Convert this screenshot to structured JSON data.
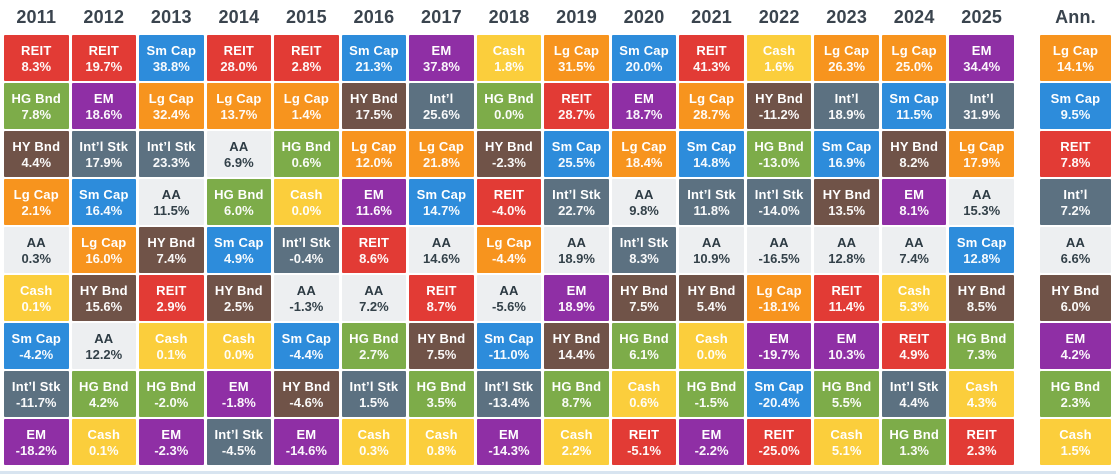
{
  "page": {
    "background": "#ffffff",
    "header_text_color": "#3a444e",
    "bottom_rule_color": "#d8e4f0"
  },
  "chart_data": {
    "type": "table",
    "layout": "ranked-columns-periodic-table",
    "column_headers": [
      "2011",
      "2012",
      "2013",
      "2014",
      "2015",
      "2016",
      "2017",
      "2018",
      "2019",
      "2020",
      "2021",
      "2022",
      "2023",
      "2024",
      "2025",
      "Ann."
    ],
    "assets": {
      "lgcap": {
        "bg": "#f7941e",
        "fg": "#ffffff"
      },
      "smcap": {
        "bg": "#2d8cdb",
        "fg": "#ffffff"
      },
      "intl": {
        "bg": "#5c7181",
        "fg": "#ffffff"
      },
      "em": {
        "bg": "#8f2fa5",
        "fg": "#ffffff"
      },
      "reit": {
        "bg": "#e23b35",
        "fg": "#ffffff"
      },
      "hgbnd": {
        "bg": "#7dac49",
        "fg": "#ffffff"
      },
      "hybnd": {
        "bg": "#705348",
        "fg": "#ffffff"
      },
      "cash": {
        "bg": "#fbce3c",
        "fg": "#ffffff"
      },
      "aa": {
        "bg": "#edeff1",
        "fg": "#2c3a43"
      }
    },
    "columns": [
      {
        "year": "2011",
        "cells": [
          {
            "label": "REIT",
            "value": "8.3%",
            "asset": "reit"
          },
          {
            "label": "HG Bnd",
            "value": "7.8%",
            "asset": "hgbnd"
          },
          {
            "label": "HY Bnd",
            "value": "4.4%",
            "asset": "hybnd"
          },
          {
            "label": "Lg Cap",
            "value": "2.1%",
            "asset": "lgcap"
          },
          {
            "label": "AA",
            "value": "0.3%",
            "asset": "aa"
          },
          {
            "label": "Cash",
            "value": "0.1%",
            "asset": "cash"
          },
          {
            "label": "Sm Cap",
            "value": "-4.2%",
            "asset": "smcap"
          },
          {
            "label": "Int’l Stk",
            "value": "-11.7%",
            "asset": "intl"
          },
          {
            "label": "EM",
            "value": "-18.2%",
            "asset": "em"
          }
        ]
      },
      {
        "year": "2012",
        "cells": [
          {
            "label": "REIT",
            "value": "19.7%",
            "asset": "reit"
          },
          {
            "label": "EM",
            "value": "18.6%",
            "asset": "em"
          },
          {
            "label": "Int’l Stk",
            "value": "17.9%",
            "asset": "intl"
          },
          {
            "label": "Sm Cap",
            "value": "16.4%",
            "asset": "smcap"
          },
          {
            "label": "Lg Cap",
            "value": "16.0%",
            "asset": "lgcap"
          },
          {
            "label": "HY Bnd",
            "value": "15.6%",
            "asset": "hybnd"
          },
          {
            "label": "AA",
            "value": "12.2%",
            "asset": "aa"
          },
          {
            "label": "HG Bnd",
            "value": "4.2%",
            "asset": "hgbnd"
          },
          {
            "label": "Cash",
            "value": "0.1%",
            "asset": "cash"
          }
        ]
      },
      {
        "year": "2013",
        "cells": [
          {
            "label": "Sm Cap",
            "value": "38.8%",
            "asset": "smcap"
          },
          {
            "label": "Lg Cap",
            "value": "32.4%",
            "asset": "lgcap"
          },
          {
            "label": "Int’l Stk",
            "value": "23.3%",
            "asset": "intl"
          },
          {
            "label": "AA",
            "value": "11.5%",
            "asset": "aa"
          },
          {
            "label": "HY Bnd",
            "value": "7.4%",
            "asset": "hybnd"
          },
          {
            "label": "REIT",
            "value": "2.9%",
            "asset": "reit"
          },
          {
            "label": "Cash",
            "value": "0.1%",
            "asset": "cash"
          },
          {
            "label": "HG Bnd",
            "value": "-2.0%",
            "asset": "hgbnd"
          },
          {
            "label": "EM",
            "value": "-2.3%",
            "asset": "em"
          }
        ]
      },
      {
        "year": "2014",
        "cells": [
          {
            "label": "REIT",
            "value": "28.0%",
            "asset": "reit"
          },
          {
            "label": "Lg Cap",
            "value": "13.7%",
            "asset": "lgcap"
          },
          {
            "label": "AA",
            "value": "6.9%",
            "asset": "aa"
          },
          {
            "label": "HG Bnd",
            "value": "6.0%",
            "asset": "hgbnd"
          },
          {
            "label": "Sm Cap",
            "value": "4.9%",
            "asset": "smcap"
          },
          {
            "label": "HY Bnd",
            "value": "2.5%",
            "asset": "hybnd"
          },
          {
            "label": "Cash",
            "value": "0.0%",
            "asset": "cash"
          },
          {
            "label": "EM",
            "value": "-1.8%",
            "asset": "em"
          },
          {
            "label": "Int’l Stk",
            "value": "-4.5%",
            "asset": "intl"
          }
        ]
      },
      {
        "year": "2015",
        "cells": [
          {
            "label": "REIT",
            "value": "2.8%",
            "asset": "reit"
          },
          {
            "label": "Lg Cap",
            "value": "1.4%",
            "asset": "lgcap"
          },
          {
            "label": "HG Bnd",
            "value": "0.6%",
            "asset": "hgbnd"
          },
          {
            "label": "Cash",
            "value": "0.0%",
            "asset": "cash"
          },
          {
            "label": "Int’l Stk",
            "value": "-0.4%",
            "asset": "intl"
          },
          {
            "label": "AA",
            "value": "-1.3%",
            "asset": "aa"
          },
          {
            "label": "Sm Cap",
            "value": "-4.4%",
            "asset": "smcap"
          },
          {
            "label": "HY Bnd",
            "value": "-4.6%",
            "asset": "hybnd"
          },
          {
            "label": "EM",
            "value": "-14.6%",
            "asset": "em"
          }
        ]
      },
      {
        "year": "2016",
        "cells": [
          {
            "label": "Sm Cap",
            "value": "21.3%",
            "asset": "smcap"
          },
          {
            "label": "HY Bnd",
            "value": "17.5%",
            "asset": "hybnd"
          },
          {
            "label": "Lg Cap",
            "value": "12.0%",
            "asset": "lgcap"
          },
          {
            "label": "EM",
            "value": "11.6%",
            "asset": "em"
          },
          {
            "label": "REIT",
            "value": "8.6%",
            "asset": "reit"
          },
          {
            "label": "AA",
            "value": "7.2%",
            "asset": "aa"
          },
          {
            "label": "HG Bnd",
            "value": "2.7%",
            "asset": "hgbnd"
          },
          {
            "label": "Int’l Stk",
            "value": "1.5%",
            "asset": "intl"
          },
          {
            "label": "Cash",
            "value": "0.3%",
            "asset": "cash"
          }
        ]
      },
      {
        "year": "2017",
        "cells": [
          {
            "label": "EM",
            "value": "37.8%",
            "asset": "em"
          },
          {
            "label": "Int’l",
            "value": "25.6%",
            "asset": "intl"
          },
          {
            "label": "Lg Cap",
            "value": "21.8%",
            "asset": "lgcap"
          },
          {
            "label": "Sm Cap",
            "value": "14.7%",
            "asset": "smcap"
          },
          {
            "label": "AA",
            "value": "14.6%",
            "asset": "aa"
          },
          {
            "label": "REIT",
            "value": "8.7%",
            "asset": "reit"
          },
          {
            "label": "HY Bnd",
            "value": "7.5%",
            "asset": "hybnd"
          },
          {
            "label": "HG Bnd",
            "value": "3.5%",
            "asset": "hgbnd"
          },
          {
            "label": "Cash",
            "value": "0.8%",
            "asset": "cash"
          }
        ]
      },
      {
        "year": "2018",
        "cells": [
          {
            "label": "Cash",
            "value": "1.8%",
            "asset": "cash"
          },
          {
            "label": "HG Bnd",
            "value": "0.0%",
            "asset": "hgbnd"
          },
          {
            "label": "HY Bnd",
            "value": "-2.3%",
            "asset": "hybnd"
          },
          {
            "label": "REIT",
            "value": "-4.0%",
            "asset": "reit"
          },
          {
            "label": "Lg Cap",
            "value": "-4.4%",
            "asset": "lgcap"
          },
          {
            "label": "AA",
            "value": "-5.6%",
            "asset": "aa"
          },
          {
            "label": "Sm Cap",
            "value": "-11.0%",
            "asset": "smcap"
          },
          {
            "label": "Int’l Stk",
            "value": "-13.4%",
            "asset": "intl"
          },
          {
            "label": "EM",
            "value": "-14.3%",
            "asset": "em"
          }
        ]
      },
      {
        "year": "2019",
        "cells": [
          {
            "label": "Lg Cap",
            "value": "31.5%",
            "asset": "lgcap"
          },
          {
            "label": "REIT",
            "value": "28.7%",
            "asset": "reit"
          },
          {
            "label": "Sm Cap",
            "value": "25.5%",
            "asset": "smcap"
          },
          {
            "label": "Int’l Stk",
            "value": "22.7%",
            "asset": "intl"
          },
          {
            "label": "AA",
            "value": "18.9%",
            "asset": "aa"
          },
          {
            "label": "EM",
            "value": "18.9%",
            "asset": "em"
          },
          {
            "label": "HY Bnd",
            "value": "14.4%",
            "asset": "hybnd"
          },
          {
            "label": "HG Bnd",
            "value": "8.7%",
            "asset": "hgbnd"
          },
          {
            "label": "Cash",
            "value": "2.2%",
            "asset": "cash"
          }
        ]
      },
      {
        "year": "2020",
        "cells": [
          {
            "label": "Sm Cap",
            "value": "20.0%",
            "asset": "smcap"
          },
          {
            "label": "EM",
            "value": "18.7%",
            "asset": "em"
          },
          {
            "label": "Lg Cap",
            "value": "18.4%",
            "asset": "lgcap"
          },
          {
            "label": "AA",
            "value": "9.8%",
            "asset": "aa"
          },
          {
            "label": "Int’l Stk",
            "value": "8.3%",
            "asset": "intl"
          },
          {
            "label": "HY Bnd",
            "value": "7.5%",
            "asset": "hybnd"
          },
          {
            "label": "HG Bnd",
            "value": "6.1%",
            "asset": "hgbnd"
          },
          {
            "label": "Cash",
            "value": "0.6%",
            "asset": "cash"
          },
          {
            "label": "REIT",
            "value": "-5.1%",
            "asset": "reit"
          }
        ]
      },
      {
        "year": "2021",
        "cells": [
          {
            "label": "REIT",
            "value": "41.3%",
            "asset": "reit"
          },
          {
            "label": "Lg Cap",
            "value": "28.7%",
            "asset": "lgcap"
          },
          {
            "label": "Sm Cap",
            "value": "14.8%",
            "asset": "smcap"
          },
          {
            "label": "Int’l Stk",
            "value": "11.8%",
            "asset": "intl"
          },
          {
            "label": "AA",
            "value": "10.9%",
            "asset": "aa"
          },
          {
            "label": "HY Bnd",
            "value": "5.4%",
            "asset": "hybnd"
          },
          {
            "label": "Cash",
            "value": "0.0%",
            "asset": "cash"
          },
          {
            "label": "HG Bnd",
            "value": "-1.5%",
            "asset": "hgbnd"
          },
          {
            "label": "EM",
            "value": "-2.2%",
            "asset": "em"
          }
        ]
      },
      {
        "year": "2022",
        "cells": [
          {
            "label": "Cash",
            "value": "1.6%",
            "asset": "cash"
          },
          {
            "label": "HY Bnd",
            "value": "-11.2%",
            "asset": "hybnd"
          },
          {
            "label": "HG Bnd",
            "value": "-13.0%",
            "asset": "hgbnd"
          },
          {
            "label": "Int’l Stk",
            "value": "-14.0%",
            "asset": "intl"
          },
          {
            "label": "AA",
            "value": "-16.5%",
            "asset": "aa"
          },
          {
            "label": "Lg Cap",
            "value": "-18.1%",
            "asset": "lgcap"
          },
          {
            "label": "EM",
            "value": "-19.7%",
            "asset": "em"
          },
          {
            "label": "Sm Cap",
            "value": "-20.4%",
            "asset": "smcap"
          },
          {
            "label": "REIT",
            "value": "-25.0%",
            "asset": "reit"
          }
        ]
      },
      {
        "year": "2023",
        "cells": [
          {
            "label": "Lg Cap",
            "value": "26.3%",
            "asset": "lgcap"
          },
          {
            "label": "Int’l",
            "value": "18.9%",
            "asset": "intl"
          },
          {
            "label": "Sm Cap",
            "value": "16.9%",
            "asset": "smcap"
          },
          {
            "label": "HY Bnd",
            "value": "13.5%",
            "asset": "hybnd"
          },
          {
            "label": "AA",
            "value": "12.8%",
            "asset": "aa"
          },
          {
            "label": "REIT",
            "value": "11.4%",
            "asset": "reit"
          },
          {
            "label": "EM",
            "value": "10.3%",
            "asset": "em"
          },
          {
            "label": "HG Bnd",
            "value": "5.5%",
            "asset": "hgbnd"
          },
          {
            "label": "Cash",
            "value": "5.1%",
            "asset": "cash"
          }
        ]
      },
      {
        "year": "2024",
        "cells": [
          {
            "label": "Lg Cap",
            "value": "25.0%",
            "asset": "lgcap"
          },
          {
            "label": "Sm Cap",
            "value": "11.5%",
            "asset": "smcap"
          },
          {
            "label": "HY Bnd",
            "value": "8.2%",
            "asset": "hybnd"
          },
          {
            "label": "EM",
            "value": "8.1%",
            "asset": "em"
          },
          {
            "label": "AA",
            "value": "7.4%",
            "asset": "aa"
          },
          {
            "label": "Cash",
            "value": "5.3%",
            "asset": "cash"
          },
          {
            "label": "REIT",
            "value": "4.9%",
            "asset": "reit"
          },
          {
            "label": "Int’l Stk",
            "value": "4.4%",
            "asset": "intl"
          },
          {
            "label": "HG Bnd",
            "value": "1.3%",
            "asset": "hgbnd"
          }
        ]
      },
      {
        "year": "2025",
        "cells": [
          {
            "label": "EM",
            "value": "34.4%",
            "asset": "em"
          },
          {
            "label": "Int’l",
            "value": "31.9%",
            "asset": "intl"
          },
          {
            "label": "Lg Cap",
            "value": "17.9%",
            "asset": "lgcap"
          },
          {
            "label": "AA",
            "value": "15.3%",
            "asset": "aa"
          },
          {
            "label": "Sm Cap",
            "value": "12.8%",
            "asset": "smcap"
          },
          {
            "label": "HY Bnd",
            "value": "8.5%",
            "asset": "hybnd"
          },
          {
            "label": "HG Bnd",
            "value": "7.3%",
            "asset": "hgbnd"
          },
          {
            "label": "Cash",
            "value": "4.3%",
            "asset": "cash"
          },
          {
            "label": "REIT",
            "value": "2.3%",
            "asset": "reit"
          }
        ]
      },
      {
        "year": "Ann.",
        "cells": [
          {
            "label": "Lg Cap",
            "value": "14.1%",
            "asset": "lgcap"
          },
          {
            "label": "Sm Cap",
            "value": "9.5%",
            "asset": "smcap"
          },
          {
            "label": "REIT",
            "value": "7.8%",
            "asset": "reit"
          },
          {
            "label": "Int’l",
            "value": "7.2%",
            "asset": "intl"
          },
          {
            "label": "AA",
            "value": "6.6%",
            "asset": "aa"
          },
          {
            "label": "HY Bnd",
            "value": "6.0%",
            "asset": "hybnd"
          },
          {
            "label": "EM",
            "value": "4.2%",
            "asset": "em"
          },
          {
            "label": "HG Bnd",
            "value": "2.3%",
            "asset": "hgbnd"
          },
          {
            "label": "Cash",
            "value": "1.5%",
            "asset": "cash"
          }
        ]
      }
    ]
  }
}
